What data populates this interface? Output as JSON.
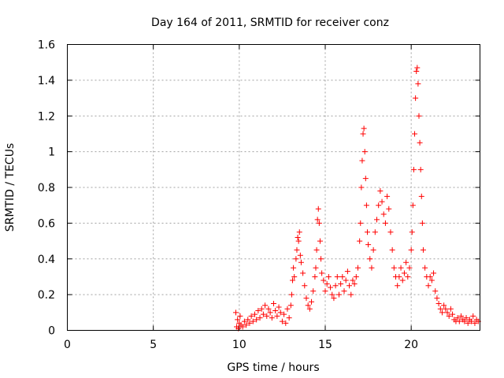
{
  "chart_data": {
    "type": "scatter",
    "title": "Day 164 of 2011, SRMTID for receiver conz",
    "xlabel": "GPS time / hours",
    "ylabel": "SRMTID / TECUs",
    "xlim": [
      0,
      24
    ],
    "ylim": [
      0,
      1.6
    ],
    "xticks": [
      0,
      5,
      10,
      15,
      20
    ],
    "yticks": [
      0,
      0.2,
      0.4,
      0.6,
      0.8,
      1,
      1.2,
      1.4,
      1.6
    ],
    "xtick_labels": [
      "0",
      "5",
      "10",
      "15",
      "20"
    ],
    "ytick_labels": [
      "0",
      "0.2",
      "0.4",
      "0.6",
      "0.8",
      "1",
      "1.2",
      "1.4",
      "1.6"
    ],
    "grid": true,
    "marker": "+",
    "color": "#ff0000",
    "series": [
      {
        "name": "SRMTID",
        "points": [
          [
            9.8,
            0.1
          ],
          [
            9.85,
            0.02
          ],
          [
            9.9,
            0.06
          ],
          [
            9.95,
            0.01
          ],
          [
            10.0,
            0.04
          ],
          [
            10.05,
            0.08
          ],
          [
            10.1,
            0.03
          ],
          [
            10.2,
            0.02
          ],
          [
            10.3,
            0.05
          ],
          [
            10.4,
            0.03
          ],
          [
            10.5,
            0.06
          ],
          [
            10.6,
            0.04
          ],
          [
            10.7,
            0.08
          ],
          [
            10.8,
            0.05
          ],
          [
            10.9,
            0.09
          ],
          [
            11.0,
            0.06
          ],
          [
            11.1,
            0.11
          ],
          [
            11.2,
            0.07
          ],
          [
            11.3,
            0.12
          ],
          [
            11.4,
            0.09
          ],
          [
            11.5,
            0.14
          ],
          [
            11.6,
            0.08
          ],
          [
            11.7,
            0.12
          ],
          [
            11.8,
            0.1
          ],
          [
            11.9,
            0.07
          ],
          [
            12.0,
            0.15
          ],
          [
            12.1,
            0.11
          ],
          [
            12.2,
            0.08
          ],
          [
            12.3,
            0.13
          ],
          [
            12.4,
            0.1
          ],
          [
            12.5,
            0.05
          ],
          [
            12.6,
            0.09
          ],
          [
            12.7,
            0.04
          ],
          [
            12.8,
            0.12
          ],
          [
            12.9,
            0.07
          ],
          [
            13.0,
            0.14
          ],
          [
            13.05,
            0.2
          ],
          [
            13.1,
            0.28
          ],
          [
            13.15,
            0.35
          ],
          [
            13.2,
            0.3
          ],
          [
            13.3,
            0.4
          ],
          [
            13.35,
            0.45
          ],
          [
            13.4,
            0.52
          ],
          [
            13.45,
            0.5
          ],
          [
            13.5,
            0.55
          ],
          [
            13.55,
            0.42
          ],
          [
            13.6,
            0.38
          ],
          [
            13.7,
            0.32
          ],
          [
            13.8,
            0.25
          ],
          [
            13.9,
            0.18
          ],
          [
            14.0,
            0.14
          ],
          [
            14.1,
            0.12
          ],
          [
            14.2,
            0.16
          ],
          [
            14.3,
            0.22
          ],
          [
            14.4,
            0.3
          ],
          [
            14.45,
            0.35
          ],
          [
            14.5,
            0.45
          ],
          [
            14.55,
            0.62
          ],
          [
            14.6,
            0.68
          ],
          [
            14.65,
            0.6
          ],
          [
            14.7,
            0.5
          ],
          [
            14.75,
            0.4
          ],
          [
            14.8,
            0.32
          ],
          [
            14.9,
            0.28
          ],
          [
            15.0,
            0.22
          ],
          [
            15.1,
            0.26
          ],
          [
            15.2,
            0.3
          ],
          [
            15.3,
            0.24
          ],
          [
            15.4,
            0.2
          ],
          [
            15.5,
            0.18
          ],
          [
            15.6,
            0.25
          ],
          [
            15.7,
            0.3
          ],
          [
            15.8,
            0.2
          ],
          [
            15.9,
            0.26
          ],
          [
            16.0,
            0.3
          ],
          [
            16.1,
            0.22
          ],
          [
            16.2,
            0.28
          ],
          [
            16.3,
            0.33
          ],
          [
            16.4,
            0.25
          ],
          [
            16.5,
            0.2
          ],
          [
            16.6,
            0.28
          ],
          [
            16.7,
            0.26
          ],
          [
            16.8,
            0.3
          ],
          [
            16.9,
            0.35
          ],
          [
            17.0,
            0.5
          ],
          [
            17.05,
            0.6
          ],
          [
            17.1,
            0.8
          ],
          [
            17.15,
            0.95
          ],
          [
            17.2,
            1.1
          ],
          [
            17.25,
            1.13
          ],
          [
            17.3,
            1.0
          ],
          [
            17.35,
            0.85
          ],
          [
            17.4,
            0.7
          ],
          [
            17.45,
            0.55
          ],
          [
            17.5,
            0.48
          ],
          [
            17.6,
            0.4
          ],
          [
            17.7,
            0.35
          ],
          [
            17.8,
            0.45
          ],
          [
            17.9,
            0.55
          ],
          [
            18.0,
            0.62
          ],
          [
            18.1,
            0.7
          ],
          [
            18.2,
            0.78
          ],
          [
            18.3,
            0.72
          ],
          [
            18.4,
            0.65
          ],
          [
            18.5,
            0.6
          ],
          [
            18.6,
            0.75
          ],
          [
            18.7,
            0.68
          ],
          [
            18.8,
            0.55
          ],
          [
            18.9,
            0.45
          ],
          [
            19.0,
            0.35
          ],
          [
            19.1,
            0.3
          ],
          [
            19.2,
            0.25
          ],
          [
            19.3,
            0.3
          ],
          [
            19.4,
            0.35
          ],
          [
            19.5,
            0.28
          ],
          [
            19.6,
            0.32
          ],
          [
            19.7,
            0.38
          ],
          [
            19.8,
            0.3
          ],
          [
            19.9,
            0.35
          ],
          [
            20.0,
            0.45
          ],
          [
            20.05,
            0.55
          ],
          [
            20.1,
            0.7
          ],
          [
            20.15,
            0.9
          ],
          [
            20.2,
            1.1
          ],
          [
            20.25,
            1.3
          ],
          [
            20.3,
            1.45
          ],
          [
            20.35,
            1.47
          ],
          [
            20.4,
            1.38
          ],
          [
            20.45,
            1.2
          ],
          [
            20.5,
            1.05
          ],
          [
            20.55,
            0.9
          ],
          [
            20.6,
            0.75
          ],
          [
            20.65,
            0.6
          ],
          [
            20.7,
            0.45
          ],
          [
            20.8,
            0.35
          ],
          [
            20.9,
            0.3
          ],
          [
            21.0,
            0.25
          ],
          [
            21.1,
            0.3
          ],
          [
            21.2,
            0.28
          ],
          [
            21.3,
            0.32
          ],
          [
            21.4,
            0.22
          ],
          [
            21.5,
            0.18
          ],
          [
            21.6,
            0.15
          ],
          [
            21.7,
            0.12
          ],
          [
            21.8,
            0.1
          ],
          [
            21.9,
            0.14
          ],
          [
            22.0,
            0.12
          ],
          [
            22.1,
            0.1
          ],
          [
            22.2,
            0.08
          ],
          [
            22.3,
            0.12
          ],
          [
            22.4,
            0.09
          ],
          [
            22.5,
            0.06
          ],
          [
            22.6,
            0.05
          ],
          [
            22.7,
            0.07
          ],
          [
            22.8,
            0.05
          ],
          [
            22.9,
            0.08
          ],
          [
            23.0,
            0.06
          ],
          [
            23.1,
            0.05
          ],
          [
            23.2,
            0.07
          ],
          [
            23.3,
            0.04
          ],
          [
            23.4,
            0.06
          ],
          [
            23.5,
            0.05
          ],
          [
            23.6,
            0.08
          ],
          [
            23.7,
            0.04
          ],
          [
            23.8,
            0.06
          ],
          [
            23.9,
            0.05
          ]
        ]
      }
    ]
  }
}
